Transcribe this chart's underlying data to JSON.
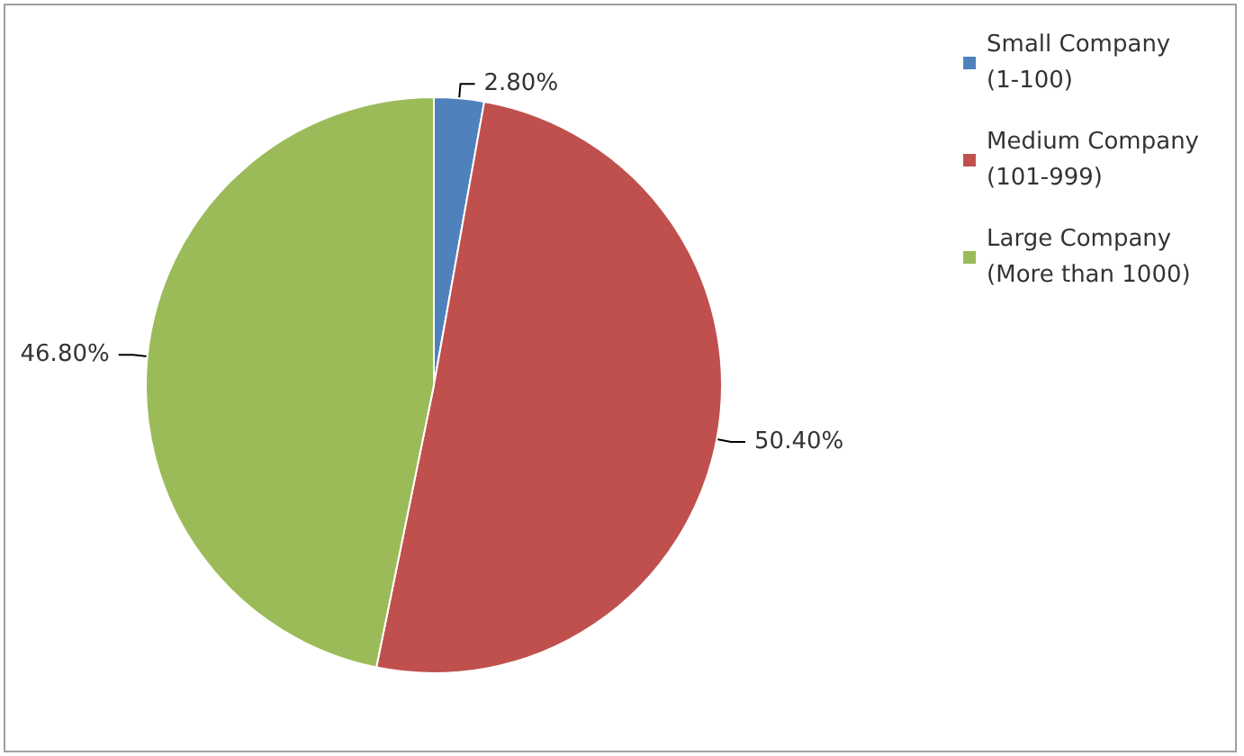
{
  "chart_data": {
    "type": "pie",
    "categories": [
      "Small Company (1-100)",
      "Medium Company (101-999)",
      "Large Company (More than 1000)"
    ],
    "values": [
      2.8,
      50.4,
      46.8
    ],
    "colors": [
      "#4f81bd",
      "#c0504d",
      "#9bbb59"
    ],
    "value_labels": [
      "2.80%",
      "50.40%",
      "46.80%"
    ],
    "legend": "right"
  }
}
